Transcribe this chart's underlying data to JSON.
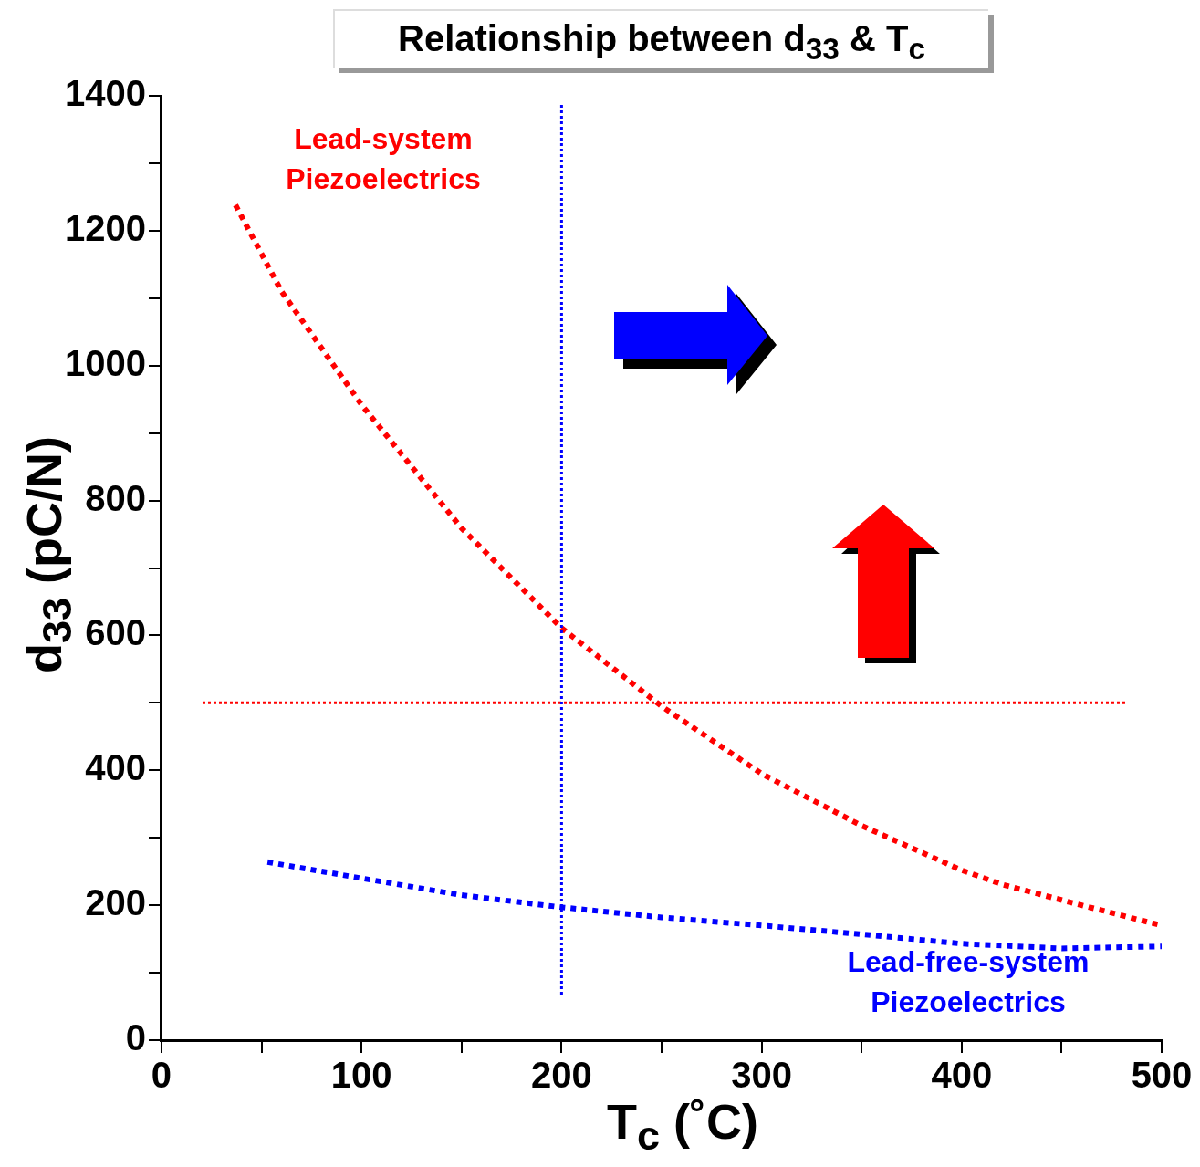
{
  "chart_data": {
    "type": "line",
    "title": "Relationship between d$_{33}$ & T$_{c}$",
    "xlabel": "T$_{c}$ (˚C)",
    "ylabel": "d$_{33}$ (pC/N)",
    "series": [
      {
        "color": "#ff0000",
        "x": [
          37,
          60,
          100,
          150,
          200,
          250,
          300,
          350,
          400,
          420,
          460,
          500
        ],
        "values": [
          1238,
          1110,
          942,
          759,
          611,
          495,
          395,
          318,
          252,
          231,
          200,
          170
        ]
      },
      {
        "color": "#0000ff",
        "x": [
          53,
          100,
          150,
          200,
          250,
          300,
          350,
          400,
          450,
          500
        ],
        "values": [
          264,
          240,
          215,
          197,
          182,
          170,
          157,
          143,
          136,
          139
        ]
      }
    ],
    "xlim": [
      0,
      500
    ],
    "xticks": [
      0,
      {
        "value": 50,
        "label": null
      },
      100,
      {
        "value": 150,
        "label": null
      },
      200,
      {
        "value": 250,
        "label": null
      },
      300,
      {
        "value": 350,
        "label": null
      },
      400,
      {
        "value": 450,
        "label": null
      },
      500
    ],
    "ylim": [
      0,
      1400
    ],
    "yticks": [
      0,
      {
        "value": 100,
        "label": null
      },
      200,
      {
        "value": 300,
        "label": null
      },
      400,
      {
        "value": 500,
        "label": null
      },
      600,
      {
        "value": 700,
        "label": null
      },
      800,
      {
        "value": 900,
        "label": null
      },
      1000,
      {
        "value": 1100,
        "label": null
      },
      1200,
      {
        "value": 1300,
        "label": null
      },
      1400
    ],
    "ref_lines": [
      {
        "axis": "y",
        "value": 500,
        "color": "#ff0000",
        "line_style": "dotted"
      },
      {
        "axis": "x",
        "value": 200,
        "color": "#0000ff",
        "line_style": "dotted"
      }
    ],
    "annotations": [
      "Lead-system Piezoelectrics",
      "Lead-free-system Piezoelectrics"
    ],
    "grid": false,
    "legend": false,
    "marker": "none",
    "line_style": "dotted"
  }
}
